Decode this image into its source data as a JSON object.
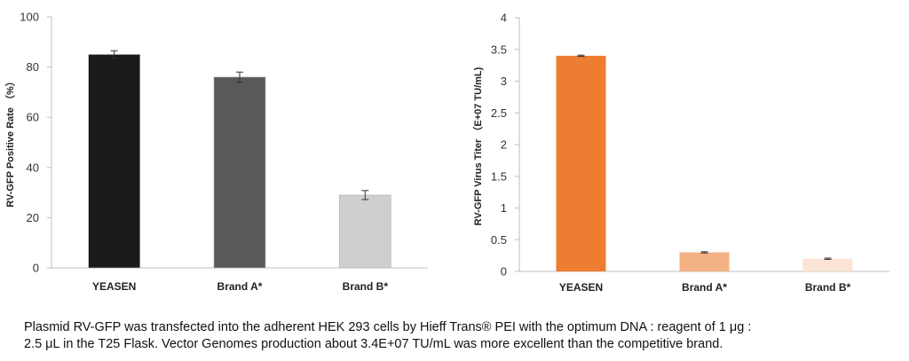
{
  "chart_data": [
    {
      "type": "bar",
      "categories": [
        "YEASEN",
        "Brand A*",
        "Brand B*"
      ],
      "values": [
        85,
        76,
        29
      ],
      "errors": [
        1.5,
        2,
        1.8
      ],
      "colors": [
        "#1a1a1a",
        "#595959",
        "#d0cfcf"
      ],
      "ylabel": "RV-GFP Positive Rate （%）",
      "ylim": [
        0,
        100
      ],
      "yticks": [
        0,
        20,
        40,
        60,
        80,
        100
      ],
      "ytick_labels": [
        "0",
        "20",
        "40",
        "60",
        "80",
        "100"
      ]
    },
    {
      "type": "bar",
      "categories": [
        "YEASEN",
        "Brand A*",
        "Brand B*"
      ],
      "values": [
        3.4,
        0.3,
        0.2
      ],
      "errors": [
        0.01,
        0.01,
        0.01
      ],
      "colors": [
        "#ed7d31",
        "#f4b183",
        "#fbe3d6"
      ],
      "ylabel": "RV-GFP Virus Titer （E+07 TU/mL)",
      "ylim": [
        0,
        4
      ],
      "yticks": [
        0,
        0.5,
        1,
        1.5,
        2,
        2.5,
        3,
        3.5,
        4
      ],
      "ytick_labels": [
        "0",
        "0.5",
        "1",
        "1.5",
        "2",
        "2.5",
        "3",
        "3.5",
        "4"
      ]
    }
  ],
  "caption": {
    "line1": "Plasmid RV-GFP was transfected into the adherent HEK 293 cells by Hieff Trans® PEI  with the optimum DNA : reagent of 1 μg :",
    "line2": "2.5 μL in the T25 Flask. Vector Genomes production about 3.4E+07 TU/mL was more excellent than the competitive brand."
  }
}
